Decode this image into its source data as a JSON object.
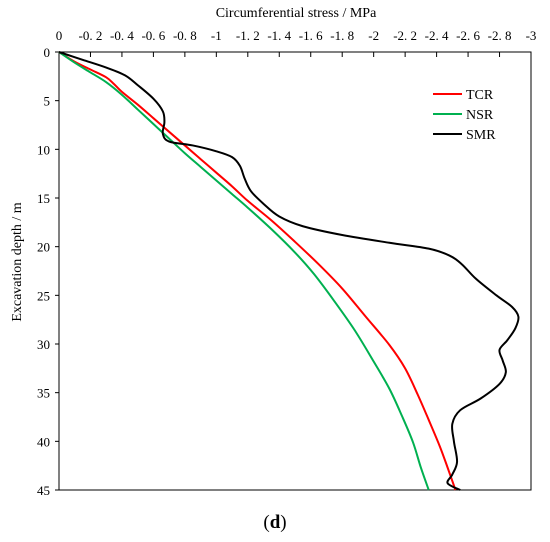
{
  "caption": {
    "open": "(",
    "letter": "d",
    "close": ")"
  },
  "chart_data": {
    "type": "line",
    "xlabel": "Circumferential stress / MPa",
    "ylabel": "Excavation depth / m",
    "x_tick_labels": [
      "0",
      "-0. 2",
      "-0. 4",
      "-0. 6",
      "-0. 8",
      "-1",
      "-1. 2",
      "-1. 4",
      "-1. 6",
      "-1. 8",
      "-2",
      "-2. 2",
      "-2. 4",
      "-2. 6",
      "-2. 8",
      "-3"
    ],
    "y_tick_labels": [
      "0",
      "5",
      "10",
      "15",
      "20",
      "25",
      "30",
      "35",
      "40",
      "45"
    ],
    "xlim": [
      0,
      -3
    ],
    "ylim": [
      0,
      45
    ],
    "x_axis_position": "top",
    "y_axis_inverted": true,
    "grid": false,
    "legend_position": "top-right",
    "series": [
      {
        "name": "TCR",
        "color": "#ff0000",
        "points": [
          [
            0,
            0
          ],
          [
            -0.1,
            1
          ],
          [
            -0.2,
            1.8
          ],
          [
            -0.3,
            2.6
          ],
          [
            -0.35,
            3.3
          ],
          [
            -0.4,
            4.1
          ],
          [
            -0.5,
            5.4
          ],
          [
            -0.6,
            6.8
          ],
          [
            -0.7,
            8.2
          ],
          [
            -0.8,
            9.6
          ],
          [
            -0.9,
            11
          ],
          [
            -1.0,
            12.4
          ],
          [
            -1.1,
            13.8
          ],
          [
            -1.2,
            15.3
          ],
          [
            -1.35,
            17.3
          ],
          [
            -1.5,
            19.5
          ],
          [
            -1.65,
            21.8
          ],
          [
            -1.8,
            24.3
          ],
          [
            -1.95,
            27.2
          ],
          [
            -2.1,
            30.1
          ],
          [
            -2.2,
            32.5
          ],
          [
            -2.28,
            35.2
          ],
          [
            -2.35,
            37.8
          ],
          [
            -2.42,
            40.5
          ],
          [
            -2.47,
            42.7
          ],
          [
            -2.52,
            45
          ]
        ]
      },
      {
        "name": "NSR",
        "color": "#00b050",
        "points": [
          [
            0,
            0
          ],
          [
            -0.1,
            1.1
          ],
          [
            -0.2,
            2.1
          ],
          [
            -0.3,
            3.1
          ],
          [
            -0.4,
            4.4
          ],
          [
            -0.5,
            5.9
          ],
          [
            -0.6,
            7.4
          ],
          [
            -0.7,
            8.9
          ],
          [
            -0.8,
            10.4
          ],
          [
            -0.9,
            11.8
          ],
          [
            -1.0,
            13.2
          ],
          [
            -1.1,
            14.6
          ],
          [
            -1.2,
            16.0
          ],
          [
            -1.35,
            18.2
          ],
          [
            -1.5,
            20.6
          ],
          [
            -1.62,
            22.8
          ],
          [
            -1.75,
            25.6
          ],
          [
            -1.88,
            28.6
          ],
          [
            -2.0,
            31.8
          ],
          [
            -2.1,
            34.6
          ],
          [
            -2.18,
            37.4
          ],
          [
            -2.25,
            40.1
          ],
          [
            -2.3,
            42.7
          ],
          [
            -2.35,
            45
          ]
        ]
      },
      {
        "name": "SMR",
        "color": "#000000",
        "points": [
          [
            0,
            0
          ],
          [
            -0.15,
            0.8
          ],
          [
            -0.3,
            1.6
          ],
          [
            -0.42,
            2.4
          ],
          [
            -0.5,
            3.4
          ],
          [
            -0.6,
            4.8
          ],
          [
            -0.66,
            6.1
          ],
          [
            -0.67,
            7.2
          ],
          [
            -0.66,
            8.4
          ],
          [
            -0.7,
            9.2
          ],
          [
            -0.85,
            9.6
          ],
          [
            -1.0,
            10.2
          ],
          [
            -1.1,
            10.8
          ],
          [
            -1.15,
            11.7
          ],
          [
            -1.18,
            13.0
          ],
          [
            -1.22,
            14.3
          ],
          [
            -1.3,
            15.6
          ],
          [
            -1.4,
            16.9
          ],
          [
            -1.55,
            17.9
          ],
          [
            -1.8,
            18.8
          ],
          [
            -2.1,
            19.6
          ],
          [
            -2.35,
            20.2
          ],
          [
            -2.48,
            20.9
          ],
          [
            -2.56,
            21.8
          ],
          [
            -2.65,
            23.3
          ],
          [
            -2.78,
            25.0
          ],
          [
            -2.88,
            26.2
          ],
          [
            -2.92,
            27.2
          ],
          [
            -2.9,
            28.4
          ],
          [
            -2.85,
            29.6
          ],
          [
            -2.8,
            30.6
          ],
          [
            -2.82,
            31.7
          ],
          [
            -2.84,
            32.9
          ],
          [
            -2.8,
            34.1
          ],
          [
            -2.68,
            35.6
          ],
          [
            -2.55,
            36.8
          ],
          [
            -2.5,
            38.2
          ],
          [
            -2.51,
            40.0
          ],
          [
            -2.53,
            42.1
          ],
          [
            -2.5,
            43.4
          ],
          [
            -2.47,
            44.3
          ],
          [
            -2.55,
            45
          ]
        ]
      }
    ]
  }
}
